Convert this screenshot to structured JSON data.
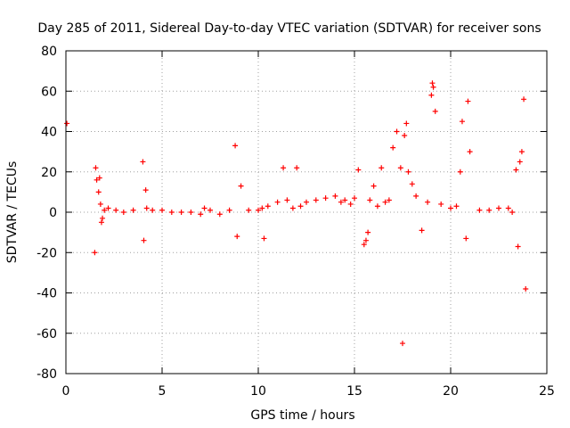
{
  "colors": {
    "series": "#ff0000",
    "axes": "#000000",
    "grid": "#a0a0a0",
    "background": "#ffffff"
  },
  "chart_data": {
    "type": "scatter",
    "title": "Day 285 of 2011, Sidereal Day-to-day VTEC variation (SDTVAR) for receiver sons",
    "xlabel": "GPS time / hours",
    "ylabel": "SDTVAR / TECUs",
    "xlim": [
      0,
      25
    ],
    "ylim": [
      -80,
      80
    ],
    "xticks": [
      0,
      5,
      10,
      15,
      20,
      25
    ],
    "yticks": [
      -80,
      -60,
      -40,
      -20,
      0,
      20,
      40,
      60,
      80
    ],
    "xtick_labels": [
      "0",
      "5",
      "10",
      "15",
      "20",
      "25"
    ],
    "ytick_labels": [
      "-80",
      "-60",
      "-40",
      "-20",
      "0",
      "20",
      "40",
      "60",
      "80"
    ],
    "grid": true,
    "marker": "+",
    "series": [
      {
        "name": "SDTVAR",
        "color": "#ff0000",
        "x": [
          0.05,
          1.5,
          1.55,
          1.6,
          1.7,
          1.75,
          1.8,
          1.85,
          1.9,
          2.0,
          2.2,
          2.6,
          3.0,
          3.5,
          4.0,
          4.05,
          4.15,
          4.2,
          4.5,
          5.0,
          5.5,
          6.0,
          6.5,
          7.0,
          7.2,
          7.5,
          8.0,
          8.5,
          8.8,
          8.9,
          9.1,
          9.5,
          10.0,
          10.2,
          10.3,
          10.5,
          11.0,
          11.3,
          11.5,
          11.8,
          12.0,
          12.2,
          12.5,
          13.0,
          13.5,
          14.0,
          14.3,
          14.5,
          14.8,
          15.0,
          15.2,
          15.5,
          15.6,
          15.7,
          15.8,
          16.0,
          16.2,
          16.4,
          16.6,
          16.8,
          17.0,
          17.2,
          17.4,
          17.5,
          17.6,
          17.7,
          17.8,
          18.0,
          18.2,
          18.5,
          18.8,
          19.0,
          19.05,
          19.1,
          19.2,
          19.5,
          20.0,
          20.3,
          20.5,
          20.6,
          20.8,
          20.9,
          21.0,
          21.5,
          22.0,
          22.5,
          23.0,
          23.2,
          23.4,
          23.5,
          23.6,
          23.7,
          23.8,
          23.9
        ],
        "y": [
          44,
          -20,
          22,
          16,
          10,
          17,
          4,
          -5,
          -3,
          1,
          2,
          1,
          0,
          1,
          25,
          -14,
          11,
          2,
          1,
          1,
          0,
          0,
          0,
          -1,
          2,
          1,
          -1,
          1,
          33,
          -12,
          13,
          1,
          1,
          2,
          -13,
          3,
          5,
          22,
          6,
          2,
          22,
          3,
          5,
          6,
          7,
          8,
          5,
          6,
          4,
          7,
          21,
          -16,
          -14,
          -10,
          6,
          13,
          3,
          22,
          5,
          6,
          32,
          40,
          22,
          -65,
          38,
          44,
          20,
          14,
          8,
          -9,
          5,
          58,
          64,
          62,
          50,
          4,
          2,
          3,
          20,
          45,
          -13,
          55,
          30,
          1,
          1,
          2,
          2,
          0,
          21,
          -17,
          25,
          30,
          56,
          -38
        ]
      }
    ]
  }
}
